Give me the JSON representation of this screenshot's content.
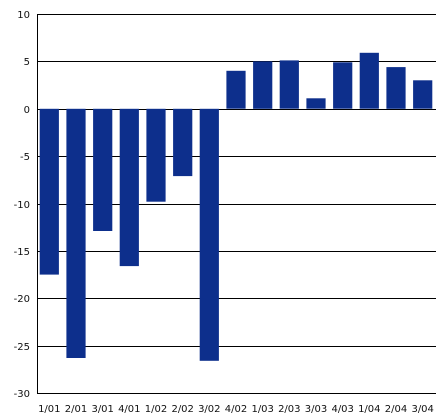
{
  "chart_data": {
    "type": "bar",
    "title": "",
    "xlabel": "",
    "ylabel": "",
    "ylim": [
      -30,
      10
    ],
    "yticks": [
      10,
      5,
      0,
      -5,
      -10,
      -15,
      -20,
      -25,
      -30
    ],
    "grid": true,
    "bar_color": "#0d2f8c",
    "categories": [
      "1/01",
      "2/01",
      "3/01",
      "4/01",
      "1/02",
      "2/02",
      "3/02",
      "4/02",
      "1/03",
      "2/03",
      "3/03",
      "4/03",
      "1/04",
      "2/04",
      "3/04"
    ],
    "values": [
      -17.5,
      -26.3,
      -12.9,
      -16.6,
      -9.8,
      -7.1,
      -26.6,
      4.0,
      5.0,
      5.1,
      1.1,
      4.9,
      5.9,
      4.4,
      3.0
    ]
  }
}
